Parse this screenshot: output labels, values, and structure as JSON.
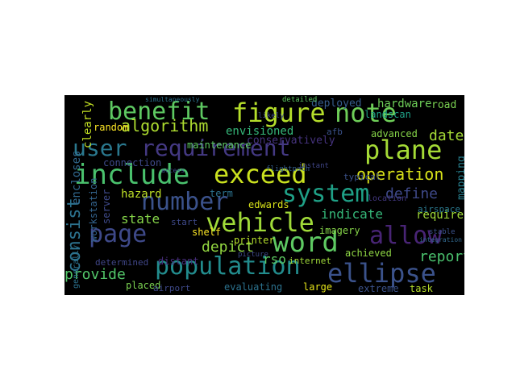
{
  "figure": {
    "background": "#ffffff",
    "cloud_background": "#000000"
  },
  "words": [
    {
      "text": "benefit",
      "color": "#5ec962"
    },
    {
      "text": "figure",
      "color": "#b5de2b"
    },
    {
      "text": "note",
      "color": "#6ece58"
    },
    {
      "text": "user",
      "color": "#2a788e"
    },
    {
      "text": "requirement",
      "color": "#443983"
    },
    {
      "text": "plane",
      "color": "#a5db36"
    },
    {
      "text": "include",
      "color": "#4ac16d"
    },
    {
      "text": "exceed",
      "color": "#cae11f"
    },
    {
      "text": "system",
      "color": "#1fa187"
    },
    {
      "text": "number",
      "color": "#3b528b"
    },
    {
      "text": "vehicle",
      "color": "#a0da39"
    },
    {
      "text": "page",
      "color": "#3e4989"
    },
    {
      "text": "word",
      "color": "#5ec962"
    },
    {
      "text": "allow",
      "color": "#482475"
    },
    {
      "text": "population",
      "color": "#228c8d"
    },
    {
      "text": "ellipse",
      "color": "#3b528b"
    },
    {
      "text": "consist",
      "color": "#2c728e"
    },
    {
      "text": "algorithm",
      "color": "#addc30"
    },
    {
      "text": "operation",
      "color": "#d8e219"
    },
    {
      "text": "date",
      "color": "#a5db36"
    },
    {
      "text": "define",
      "color": "#3e4989"
    },
    {
      "text": "indicate",
      "color": "#35b779"
    },
    {
      "text": "require",
      "color": "#a0da39"
    },
    {
      "text": "report",
      "color": "#4ac16d"
    },
    {
      "text": "state",
      "color": "#86d549"
    },
    {
      "text": "provide",
      "color": "#52c569"
    },
    {
      "text": "depict",
      "color": "#93d741"
    },
    {
      "text": "rso",
      "color": "#5ec962"
    },
    {
      "text": "hazard",
      "color": "#bddf26"
    },
    {
      "text": "envisioned",
      "color": "#35b779"
    },
    {
      "text": "conservatively",
      "color": "#46337e"
    },
    {
      "text": "maintenance",
      "color": "#5ec962"
    },
    {
      "text": "connection",
      "color": "#3e4989"
    },
    {
      "text": "random",
      "color": "#fde725"
    },
    {
      "text": "deployed",
      "color": "#365c8d"
    },
    {
      "text": "hardware",
      "color": "#6ece58"
    },
    {
      "text": "landscan",
      "color": "#1fa187"
    },
    {
      "text": "road",
      "color": "#7ad151"
    },
    {
      "text": "advanced",
      "color": "#86d549"
    },
    {
      "text": "afb",
      "color": "#3b528b"
    },
    {
      "text": "clearly",
      "color": "#c2df23"
    },
    {
      "text": "encloses",
      "color": "#31688e"
    },
    {
      "text": "mapping",
      "color": "#277f8e"
    },
    {
      "text": "term",
      "color": "#2c728e"
    },
    {
      "text": "edwards",
      "color": "#d8e219"
    },
    {
      "text": "printer",
      "color": "#b5de2b"
    },
    {
      "text": "shelf",
      "color": "#fde725"
    },
    {
      "text": "start",
      "color": "#3e4989"
    },
    {
      "text": "distant",
      "color": "#472d7b"
    },
    {
      "text": "determined",
      "color": "#404688"
    },
    {
      "text": "placed",
      "color": "#7ad151"
    },
    {
      "text": "airport",
      "color": "#3e4989"
    },
    {
      "text": "evaluating",
      "color": "#2c728e"
    },
    {
      "text": "large",
      "color": "#e5e419"
    },
    {
      "text": "extreme",
      "color": "#3b528b"
    },
    {
      "text": "task",
      "color": "#b5de2b"
    },
    {
      "text": "imagery",
      "color": "#86d549"
    },
    {
      "text": "achieved",
      "color": "#8fd744"
    },
    {
      "text": "internet",
      "color": "#a0da39"
    },
    {
      "text": "airspace",
      "color": "#2a788e"
    },
    {
      "text": "server",
      "color": "#3e4989"
    },
    {
      "text": "workstation",
      "color": "#33638d"
    },
    {
      "text": "typical",
      "color": "#3b528b"
    },
    {
      "text": "location",
      "color": "#443983"
    },
    {
      "text": "generally",
      "color": "#2c728e"
    },
    {
      "text": "picture",
      "color": "#3e4989"
    },
    {
      "text": "flightpath",
      "color": "#355f8d"
    },
    {
      "text": "detailed",
      "color": "#5ec962"
    },
    {
      "text": "likely",
      "color": "#3e4989"
    },
    {
      "text": "stable",
      "color": "#3b528b"
    },
    {
      "text": "instant",
      "color": "#404688"
    },
    {
      "text": "access",
      "color": "#3e4989"
    },
    {
      "text": "simultaneously",
      "color": "#2c728e"
    },
    {
      "text": "integration",
      "color": "#31688e"
    }
  ]
}
